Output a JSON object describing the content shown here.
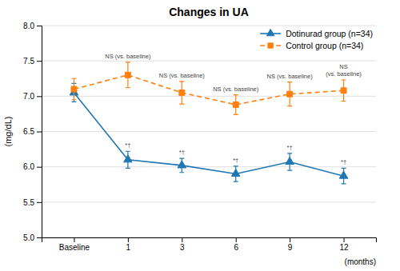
{
  "chart_data": {
    "type": "line",
    "title": "Changes in UA",
    "xlabel": "(months)",
    "ylabel": "(mg/dL)",
    "categories": [
      "Baseline",
      "1",
      "3",
      "6",
      "9",
      "12"
    ],
    "ylim": [
      5.0,
      8.0
    ],
    "yticks": [
      {
        "value": 5.0,
        "label": "5.0"
      },
      5.5,
      {
        "value": 6.0,
        "label": "6.0"
      },
      6.5,
      {
        "value": 7.0,
        "label": "7.0"
      },
      7.5,
      {
        "value": 8.0,
        "label": "8.0"
      }
    ],
    "grid": true,
    "legend": "upper right",
    "series": [
      {
        "name": "Dotinurad group (n=34)",
        "marker": "triangle",
        "line_style": "solid",
        "values": [
          7.05,
          6.1,
          6.02,
          5.9,
          6.07,
          5.87
        ],
        "errors": [
          0.13,
          0.12,
          0.1,
          0.11,
          0.12,
          0.11
        ],
        "annotations": [
          {
            "x": "1",
            "text": "*†"
          },
          {
            "x": "3",
            "text": "*†"
          },
          {
            "x": "6",
            "text": "*†"
          },
          {
            "x": "9",
            "text": "*†"
          },
          {
            "x": "12",
            "text": "*†"
          }
        ]
      },
      {
        "name": "Control group (n=34)",
        "marker": "square",
        "line_style": "dashed",
        "values": [
          7.1,
          7.3,
          7.05,
          6.88,
          7.03,
          7.08
        ],
        "errors": [
          0.15,
          0.18,
          0.16,
          0.14,
          0.17,
          0.15
        ],
        "annotations": [
          {
            "x": "1",
            "text": "NS (vs. baseline)"
          },
          {
            "x": "3",
            "text": "NS (vs. baseline)"
          },
          {
            "x": "6",
            "text": "NS (vs. baseline)"
          },
          {
            "x": "9",
            "text": "NS (vs. baseline)"
          },
          {
            "x": "12",
            "text": "NS\n(vs. baseline)"
          }
        ]
      }
    ]
  }
}
